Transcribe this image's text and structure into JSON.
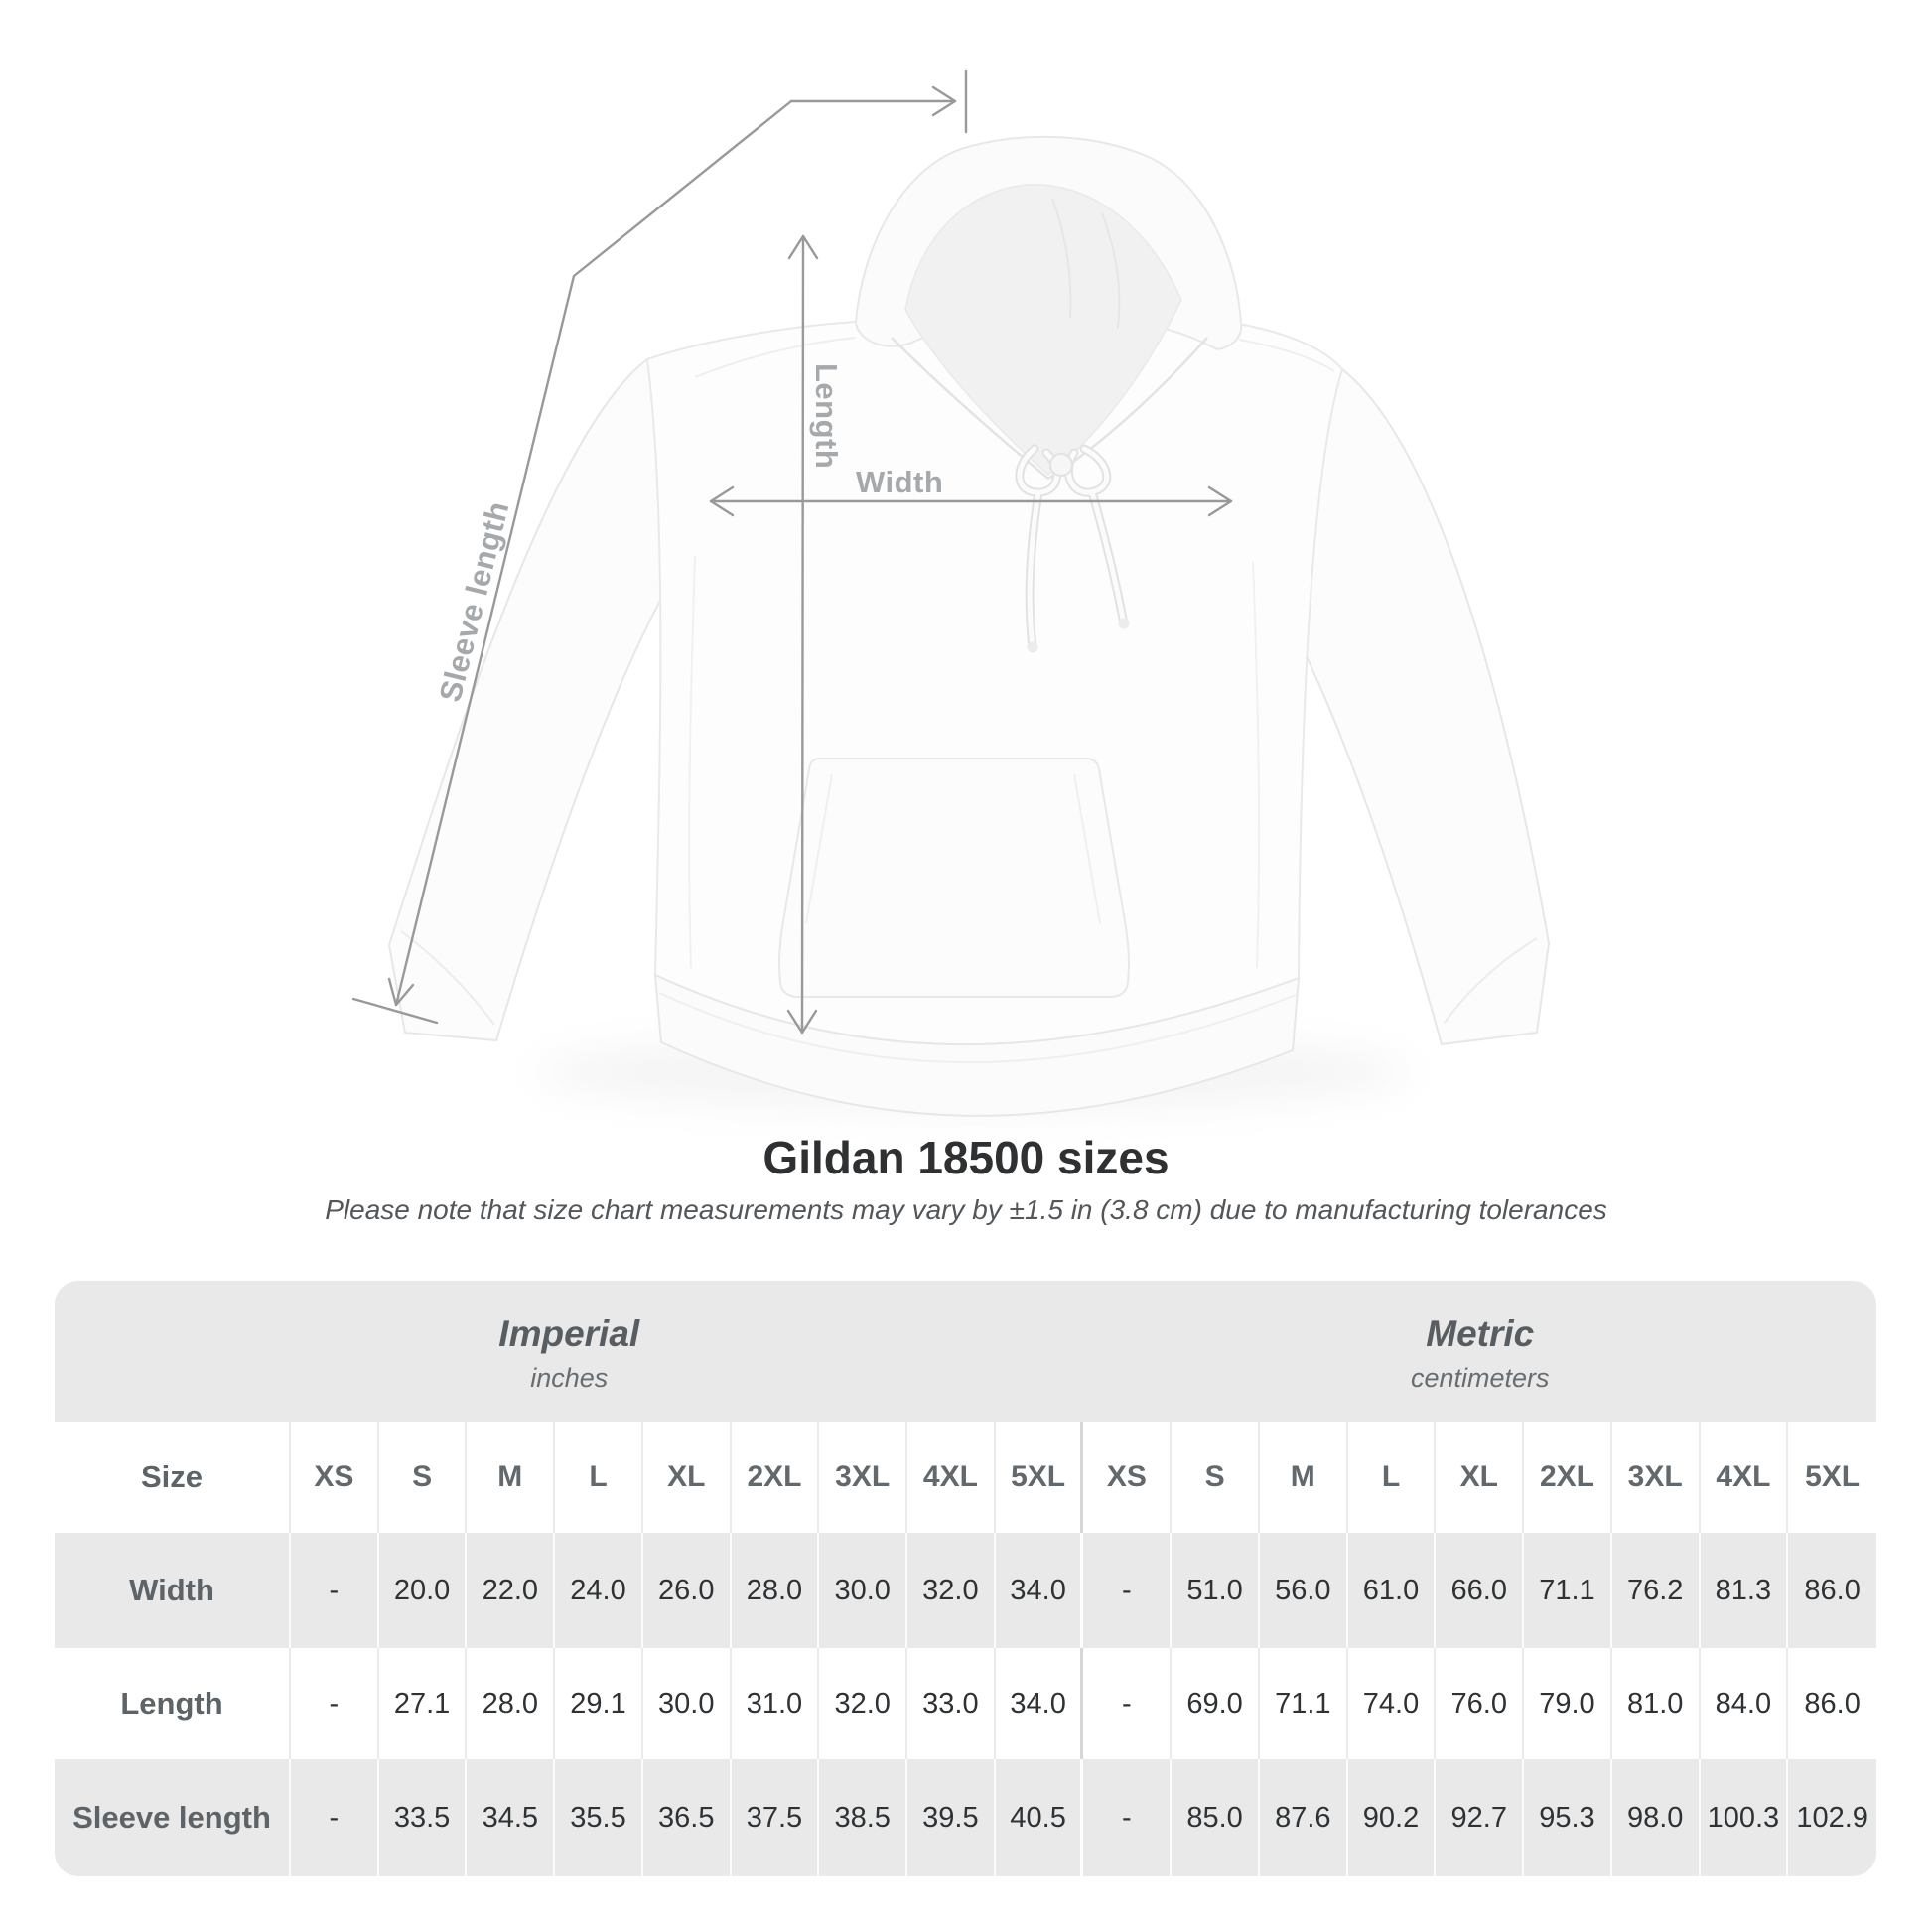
{
  "diagram": {
    "length_label": "Length",
    "width_label": "Width",
    "sleeve_label": "Sleeve length"
  },
  "heading": {
    "title": "Gildan 18500 sizes",
    "subtitle": "Please note that size chart measurements may vary by ±1.5 in (3.8 cm) due to manufacturing tolerances"
  },
  "table": {
    "size_header": "Size",
    "sizes": [
      "XS",
      "S",
      "M",
      "L",
      "XL",
      "2XL",
      "3XL",
      "4XL",
      "5XL"
    ],
    "groups": [
      {
        "label": "Imperial",
        "units": "inches"
      },
      {
        "label": "Metric",
        "units": "centimeters"
      }
    ],
    "rows": [
      {
        "label": "Width",
        "imperial": [
          "-",
          "20.0",
          "22.0",
          "24.0",
          "26.0",
          "28.0",
          "30.0",
          "32.0",
          "34.0"
        ],
        "metric": [
          "-",
          "51.0",
          "56.0",
          "61.0",
          "66.0",
          "71.1",
          "76.2",
          "81.3",
          "86.0"
        ]
      },
      {
        "label": "Length",
        "imperial": [
          "-",
          "27.1",
          "28.0",
          "29.1",
          "30.0",
          "31.0",
          "32.0",
          "33.0",
          "34.0"
        ],
        "metric": [
          "-",
          "69.0",
          "71.1",
          "74.0",
          "76.0",
          "79.0",
          "81.0",
          "84.0",
          "86.0"
        ]
      },
      {
        "label": "Sleeve length",
        "imperial": [
          "-",
          "33.5",
          "34.5",
          "35.5",
          "36.5",
          "37.5",
          "38.5",
          "39.5",
          "40.5"
        ],
        "metric": [
          "-",
          "85.0",
          "87.6",
          "90.2",
          "92.7",
          "95.3",
          "98.0",
          "100.3",
          "102.9"
        ]
      }
    ]
  },
  "colors": {
    "table_band": "#e9e9e9",
    "alt_row": "#e9e9e9",
    "dim_line": "#98999b",
    "dim_label": "#a6a9ac",
    "title_text": "#2e3032",
    "value_text": "#2f3234",
    "header_text": "#5d6367"
  }
}
